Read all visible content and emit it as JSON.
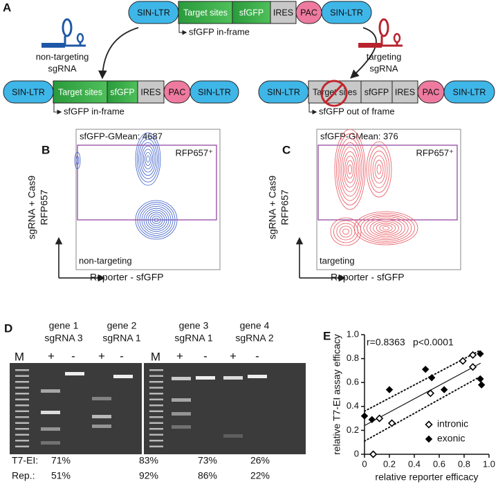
{
  "panel_a": {
    "label": "A",
    "top": {
      "parts": [
        "SIN-LTR",
        "Target sites",
        "sfGFP",
        "IRES",
        "PAC",
        "SIN-LTR"
      ],
      "note": "sfGFP in-frame"
    },
    "left_guide": [
      "non-targeting",
      "sgRNA"
    ],
    "right_guide": [
      "targeting",
      "sgRNA"
    ],
    "left": {
      "parts": [
        "SIN-LTR",
        "Target sites",
        "sfGFP",
        "IRES",
        "PAC",
        "SIN-LTR"
      ],
      "note": "sfGFP in-frame"
    },
    "right": {
      "parts": [
        "SIN-LTR",
        "Target sites",
        "sfGFP",
        "IRES",
        "PAC",
        "SIN-LTR"
      ],
      "note": "sfGFP out of frame"
    }
  },
  "panel_b": {
    "label": "B",
    "stat": "sfGFP-GMean: 4687",
    "gate": "RFP657⁺",
    "condition": "non-targeting",
    "y_label": [
      "sgRNA + Cas9",
      "RFP657"
    ],
    "x_label": "Reporter - sfGFP"
  },
  "panel_c": {
    "label": "C",
    "stat": "sfGFP-GMean: 376",
    "gate": "RFP657⁺",
    "condition": "targeting",
    "y_label": [
      "sgRNA + Cas9",
      "RFP657"
    ],
    "x_label": "Reporter - sfGFP"
  },
  "panel_d": {
    "label": "D",
    "groups": [
      [
        "gene 1",
        "sgRNA 3"
      ],
      [
        "gene 2",
        "sgRNA 1"
      ],
      [
        "gene 3",
        "sgRNA 1"
      ],
      [
        "gene 4",
        "sgRNA 2"
      ]
    ],
    "ladder": [
      "M",
      "M"
    ],
    "lanes": [
      "+",
      "-",
      "+",
      "-",
      "+",
      "-",
      "+",
      "-"
    ],
    "rows": [
      [
        "T7-EI:",
        "71%",
        "83%",
        "73%",
        "26%"
      ],
      [
        "Rep.:",
        "51%",
        "92%",
        "86%",
        "22%"
      ]
    ]
  },
  "chart_data": {
    "type": "scatter",
    "label": "E",
    "x_label": "relative reporter efficacy",
    "y_label": "relative T7-EI assay efficacy",
    "annotations": [
      "r=0.8363",
      "p<0.0001"
    ],
    "xlim": [
      0,
      1
    ],
    "ylim": [
      0,
      1
    ],
    "xticks": [
      0,
      0.2,
      0.4,
      0.6,
      0.8,
      {
        "value": 1,
        "label": "1.0"
      }
    ],
    "yticks": [
      0,
      0.2,
      0.4,
      0.6,
      0.8,
      {
        "value": 1,
        "label": "1.0"
      }
    ],
    "legend": "lower right",
    "series": [
      {
        "name": "intronic",
        "marker": "open-diamond",
        "color": "#000000",
        "x": [
          0.07,
          0.12,
          0.22,
          0.53,
          0.79,
          0.87,
          0.87
        ],
        "values": [
          0,
          0.3,
          0.26,
          0.51,
          0.78,
          0.83,
          0.73
        ]
      },
      {
        "name": "exonic",
        "marker": "filled-diamond",
        "color": "#000000",
        "x": [
          0,
          0.06,
          0.2,
          0.49,
          0.54,
          0.64,
          0.93,
          0.93,
          0.94
        ],
        "values": [
          0.32,
          0.29,
          0.54,
          0.71,
          0.64,
          0.54,
          0.84,
          0.63,
          0.58
        ]
      }
    ],
    "lines": [
      {
        "style": "solid",
        "x": [
          0,
          0.93
        ],
        "values": [
          0.24,
          0.76
        ]
      },
      {
        "style": "dotted",
        "x": [
          0,
          0.93
        ],
        "values": [
          0.36,
          0.87
        ]
      },
      {
        "style": "dotted",
        "x": [
          0,
          0.93
        ],
        "values": [
          0.11,
          0.65
        ]
      }
    ]
  }
}
